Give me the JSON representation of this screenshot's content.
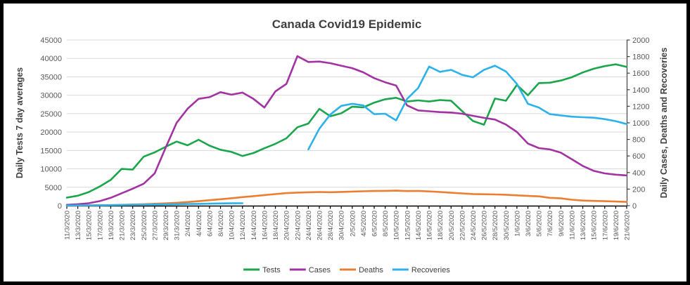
{
  "chart": {
    "title": "Canada Covid19 Epidemic",
    "colors": {
      "tests_green": "#1AA64B",
      "cases_purple": "#A332A2",
      "deaths_orange": "#ED7D31",
      "recoveries_blue": "#2CB2E9",
      "title_text": "#404040",
      "tick_text": "#595959",
      "gridline": "#D9D9D9",
      "axis_line": "#000000",
      "frame_border": "#000000"
    }
  },
  "chart_data": {
    "type": "line",
    "title": "Canada Covid19 Epidemic",
    "grid": true,
    "legend_position": "bottom",
    "categories": [
      "11/3/2020",
      "13/3/2020",
      "15/3/2020",
      "17/3/2020",
      "19/3/2020",
      "21/3/2020",
      "23/3/2020",
      "25/3/2020",
      "27/3/2020",
      "29/3/2020",
      "31/3/2020",
      "2/4/2020",
      "4/4/2020",
      "6/4/2020",
      "8/4/2020",
      "10/4/2020",
      "12/4/2020",
      "14/4/2020",
      "16/4/2020",
      "18/4/2020",
      "20/4/2020",
      "22/4/2020",
      "24/4/2020",
      "26/4/2020",
      "28/4/2020",
      "30/4/2020",
      "2/5/2020",
      "4/5/2020",
      "6/5/2020",
      "8/5/2020",
      "10/5/2020",
      "12/5/2020",
      "14/5/2020",
      "16/5/2020",
      "18/5/2020",
      "20/5/2020",
      "22/5/2020",
      "24/5/2020",
      "26/5/2020",
      "28/5/2020",
      "30/5/2020",
      "1/6/2020",
      "3/6/2020",
      "5/6/2020",
      "7/6/2020",
      "9/6/2020",
      "11/6/2020",
      "13/6/2020",
      "15/6/2020",
      "17/6/2020",
      "19/6/2020",
      "21/6/2020"
    ],
    "left_axis": {
      "label": "Daily Tests 7 day averages",
      "min": 0,
      "max": 45000,
      "step": 5000
    },
    "right_axis": {
      "label": "Daily Cases, Deaths and Recoveries",
      "min": 0,
      "max": 2000,
      "step": 200
    },
    "series": [
      {
        "name": "Tests",
        "axis": "left",
        "color": "#1AA64B",
        "values": [
          2200,
          2700,
          3700,
          5200,
          7000,
          10000,
          9800,
          13300,
          14500,
          16000,
          17400,
          16400,
          17900,
          16300,
          15200,
          14600,
          13500,
          14300,
          15600,
          16800,
          18300,
          21300,
          22300,
          26300,
          24300,
          25100,
          26900,
          26700,
          28000,
          28900,
          29300,
          28300,
          28600,
          28300,
          28700,
          28500,
          25700,
          23000,
          22000,
          29100,
          28500,
          32800,
          30000,
          33300,
          33400,
          34000,
          34900,
          36200,
          37200,
          37900,
          38400,
          37700
        ]
      },
      {
        "name": "Cases",
        "axis": "right",
        "color": "#A332A2",
        "values": [
          10,
          18,
          30,
          55,
          95,
          150,
          205,
          265,
          390,
          700,
          1000,
          1170,
          1290,
          1310,
          1370,
          1340,
          1365,
          1290,
          1185,
          1380,
          1470,
          1805,
          1735,
          1740,
          1720,
          1690,
          1660,
          1610,
          1540,
          1490,
          1450,
          1210,
          1150,
          1140,
          1130,
          1125,
          1110,
          1085,
          1060,
          1040,
          980,
          890,
          750,
          695,
          680,
          640,
          560,
          480,
          420,
          390,
          375,
          365
        ]
      },
      {
        "name": "Deaths",
        "axis": "right",
        "color": "#ED7D31",
        "values": [
          1,
          2,
          3,
          5,
          7,
          10,
          14,
          18,
          23,
          28,
          35,
          44,
          54,
          66,
          78,
          90,
          103,
          115,
          128,
          140,
          152,
          158,
          162,
          165,
          163,
          166,
          170,
          174,
          177,
          179,
          181,
          176,
          178,
          172,
          165,
          156,
          148,
          141,
          138,
          136,
          132,
          125,
          118,
          113,
          95,
          88,
          72,
          62,
          58,
          54,
          50,
          46
        ]
      },
      {
        "name": "Recoveries",
        "axis": "right",
        "color": "#2CB2E9",
        "values": [
          2,
          3,
          4,
          5,
          6,
          8,
          10,
          12,
          14,
          16,
          18,
          20,
          22,
          25,
          27,
          29,
          30,
          null,
          null,
          null,
          null,
          null,
          680,
          930,
          1100,
          1205,
          1230,
          1210,
          1105,
          1110,
          1030,
          1290,
          1420,
          1680,
          1615,
          1640,
          1580,
          1550,
          1640,
          1690,
          1620,
          1470,
          1230,
          1185,
          1105,
          1090,
          1075,
          1068,
          1062,
          1045,
          1020,
          985
        ]
      }
    ]
  }
}
